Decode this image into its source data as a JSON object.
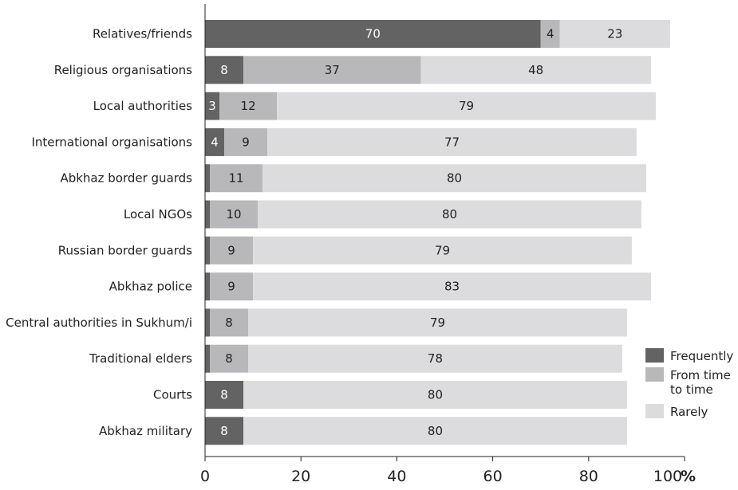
{
  "chart_data": {
    "type": "bar",
    "orientation": "horizontal",
    "stacked": true,
    "categories": [
      "Relatives/friends",
      "Religious organisations",
      "Local authorities",
      "International organisations",
      "Abkhaz border guards",
      "Local NGOs",
      "Russian border guards",
      "Abkhaz police",
      "Central authorities in Sukhum/i",
      "Traditional elders",
      "Courts",
      "Abkhaz military"
    ],
    "series": [
      {
        "name": "Frequently",
        "color": "#636363",
        "values": [
          70,
          8,
          3,
          4,
          1,
          1,
          1,
          1,
          1,
          1,
          8,
          8
        ],
        "labels": [
          "70",
          "8",
          "3",
          "4",
          "",
          "",
          "",
          "",
          "",
          "",
          "8",
          "8"
        ]
      },
      {
        "name": "From time to time",
        "color": "#b8b8ba",
        "values": [
          4,
          37,
          12,
          9,
          11,
          10,
          9,
          9,
          8,
          8,
          0,
          0
        ],
        "labels": [
          "4",
          "37",
          "12",
          "9",
          "11",
          "10",
          "9",
          "9",
          "8",
          "8",
          "",
          ""
        ]
      },
      {
        "name": "Rarely",
        "color": "#dcdcde",
        "values": [
          23,
          48,
          79,
          77,
          80,
          80,
          79,
          83,
          79,
          78,
          80,
          80
        ],
        "labels": [
          "23",
          "48",
          "79",
          "77",
          "80",
          "80",
          "79",
          "83",
          "79",
          "78",
          "80",
          "80"
        ]
      }
    ],
    "legend": {
      "placement": "bottom-right",
      "items": [
        {
          "lines": [
            "Frequently"
          ],
          "color": "#636363"
        },
        {
          "lines": [
            "From time",
            "to time"
          ],
          "color": "#b8b8ba"
        },
        {
          "lines": [
            "Rarely"
          ],
          "color": "#dcdcde"
        }
      ]
    },
    "x_ticks": [
      "0",
      "20",
      "40",
      "60",
      "80",
      "100"
    ],
    "x_unit": "%",
    "xlim": [
      0,
      100
    ],
    "grid": false
  }
}
